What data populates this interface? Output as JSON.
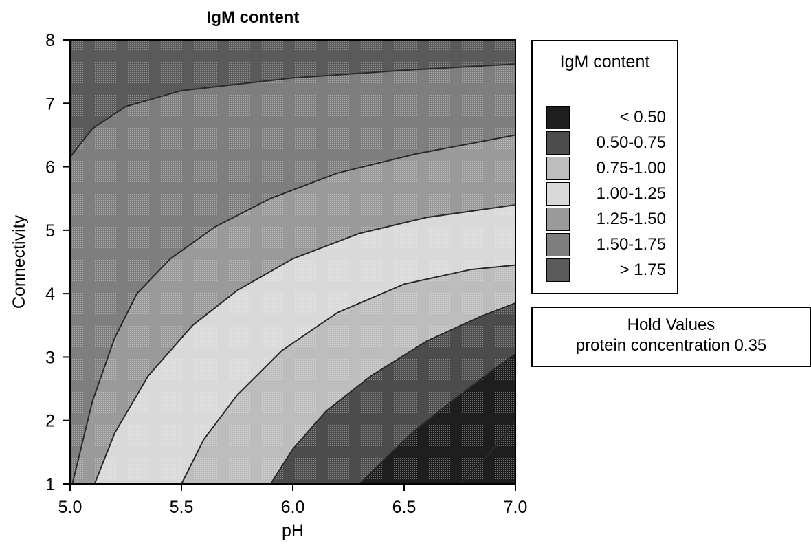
{
  "chart_data": {
    "type": "contour",
    "title": "IgM content",
    "xlabel": "pH",
    "ylabel": "Connectivity",
    "xlim": [
      5.0,
      7.0
    ],
    "ylim": [
      1,
      8
    ],
    "xticks": [
      "5.0",
      "5.5",
      "6.0",
      "6.5",
      "7.0"
    ],
    "yticks": [
      "1",
      "2",
      "3",
      "4",
      "5",
      "6",
      "7",
      "8"
    ],
    "grid": false,
    "legend_position": "right",
    "legend": {
      "title": "IgM content",
      "entries": [
        {
          "label": "< 0.50",
          "color": "#1e1e1e"
        },
        {
          "label": "0.50-0.75",
          "color": "#4c4c4c"
        },
        {
          "label": "0.75-1.00",
          "color": "#bdbdbd"
        },
        {
          "label": "1.00-1.25",
          "color": "#d9d9d9"
        },
        {
          "label": "1.25-1.50",
          "color": "#9a9a9a"
        },
        {
          "label": "1.50-1.75",
          "color": "#7e7e7e"
        },
        {
          "label": "> 1.75",
          "color": "#5a5a5a"
        }
      ]
    },
    "hold_values": {
      "title": "Hold Values",
      "text": "protein concentration 0.35"
    },
    "contour_boundaries": [
      {
        "between": "> 1.75 | 1.50-1.75",
        "points": [
          [
            5.0,
            6.15
          ],
          [
            5.1,
            6.6
          ],
          [
            5.25,
            6.95
          ],
          [
            5.5,
            7.2
          ],
          [
            6.0,
            7.4
          ],
          [
            6.5,
            7.52
          ],
          [
            7.0,
            7.62
          ]
        ]
      },
      {
        "between": "1.50-1.75 | 1.25-1.50",
        "points": [
          [
            5.01,
            1.0
          ],
          [
            5.1,
            2.3
          ],
          [
            5.2,
            3.3
          ],
          [
            5.3,
            4.0
          ],
          [
            5.45,
            4.55
          ],
          [
            5.65,
            5.05
          ],
          [
            5.9,
            5.5
          ],
          [
            6.2,
            5.9
          ],
          [
            6.55,
            6.2
          ],
          [
            7.0,
            6.5
          ]
        ]
      },
      {
        "between": "1.25-1.50 | 1.00-1.25",
        "points": [
          [
            5.11,
            1.0
          ],
          [
            5.2,
            1.8
          ],
          [
            5.35,
            2.7
          ],
          [
            5.55,
            3.5
          ],
          [
            5.75,
            4.05
          ],
          [
            6.0,
            4.55
          ],
          [
            6.3,
            4.95
          ],
          [
            6.6,
            5.2
          ],
          [
            7.0,
            5.4
          ]
        ]
      },
      {
        "between": "1.00-1.25 | 0.75-1.00",
        "points": [
          [
            5.5,
            1.0
          ],
          [
            5.6,
            1.7
          ],
          [
            5.75,
            2.4
          ],
          [
            5.95,
            3.1
          ],
          [
            6.2,
            3.7
          ],
          [
            6.5,
            4.15
          ],
          [
            6.8,
            4.38
          ],
          [
            7.0,
            4.45
          ]
        ]
      },
      {
        "between": "0.75-1.00 | 0.50-0.75",
        "points": [
          [
            5.9,
            1.0
          ],
          [
            6.0,
            1.55
          ],
          [
            6.15,
            2.15
          ],
          [
            6.35,
            2.7
          ],
          [
            6.6,
            3.25
          ],
          [
            6.85,
            3.65
          ],
          [
            7.0,
            3.85
          ]
        ]
      },
      {
        "between": "0.50-0.75 | < 0.50",
        "points": [
          [
            6.3,
            1.0
          ],
          [
            6.4,
            1.35
          ],
          [
            6.55,
            1.85
          ],
          [
            6.75,
            2.4
          ],
          [
            6.9,
            2.8
          ],
          [
            7.0,
            3.05
          ]
        ]
      },
      {
        "between": "< 0.50 inner",
        "points": [
          [
            6.75,
            1.0
          ],
          [
            6.85,
            1.35
          ],
          [
            6.95,
            1.75
          ],
          [
            7.0,
            2.0
          ]
        ]
      }
    ]
  }
}
